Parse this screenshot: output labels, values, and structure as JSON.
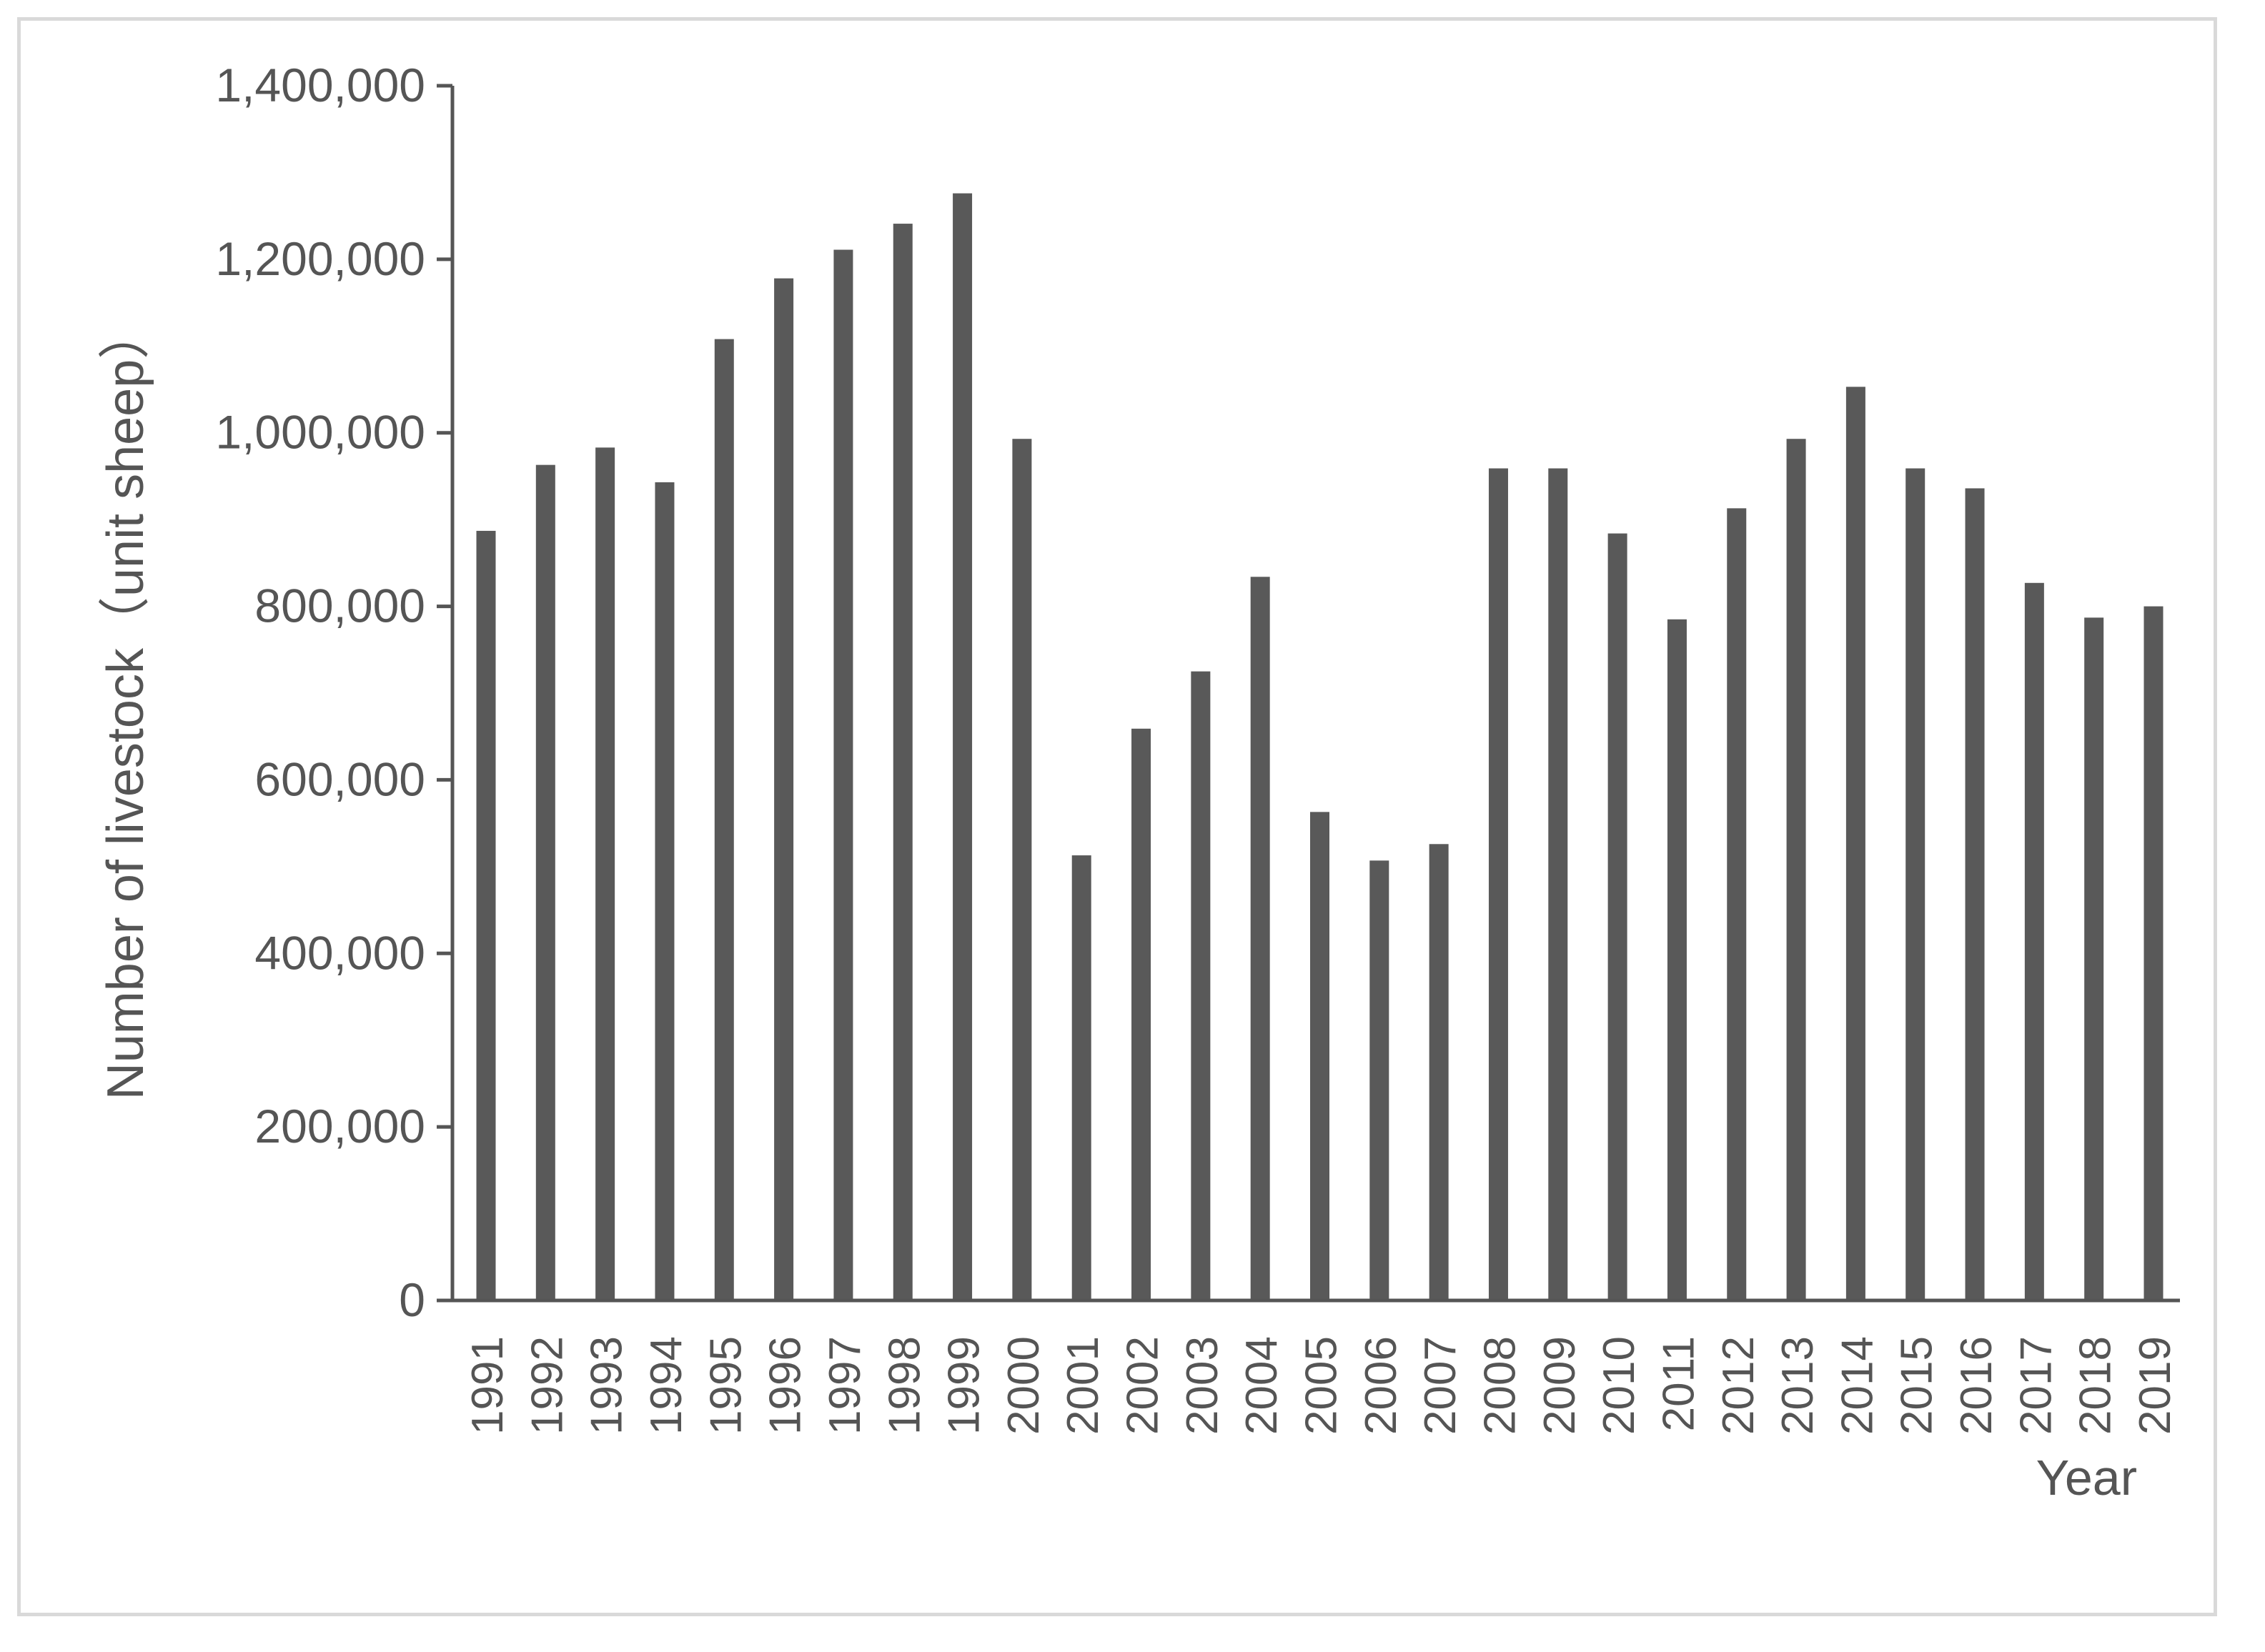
{
  "chart_data": {
    "type": "bar",
    "title": "",
    "xlabel": "Year",
    "ylabel": "Number of livestock（unit sheep）",
    "ylim": [
      0,
      1400000
    ],
    "yticks": [
      0,
      200000,
      400000,
      600000,
      800000,
      1000000,
      1200000,
      1400000
    ],
    "ytick_labels": [
      "0",
      "200,000",
      "400,000",
      "600,000",
      "800,000",
      "1,000,000",
      "1,200,000",
      "1,400,000"
    ],
    "grid": false,
    "legend": "none",
    "bar_color": "#595959",
    "axis_color": "#555555",
    "categories": [
      "1991",
      "1992",
      "1993",
      "1994",
      "1995",
      "1996",
      "1997",
      "1998",
      "1999",
      "2000",
      "2001",
      "2002",
      "2003",
      "2004",
      "2005",
      "2006",
      "2007",
      "2008",
      "2009",
      "2010",
      "2011",
      "2012",
      "2013",
      "2014",
      "2015",
      "2016",
      "2017",
      "2018",
      "2019"
    ],
    "values": [
      887000,
      963000,
      983000,
      943000,
      1108000,
      1178000,
      1211000,
      1241000,
      1276000,
      993000,
      513000,
      659000,
      725000,
      834000,
      563000,
      507000,
      526000,
      959000,
      959000,
      884000,
      785000,
      913000,
      993000,
      1053000,
      959000,
      936000,
      827000,
      787000,
      800000
    ]
  }
}
